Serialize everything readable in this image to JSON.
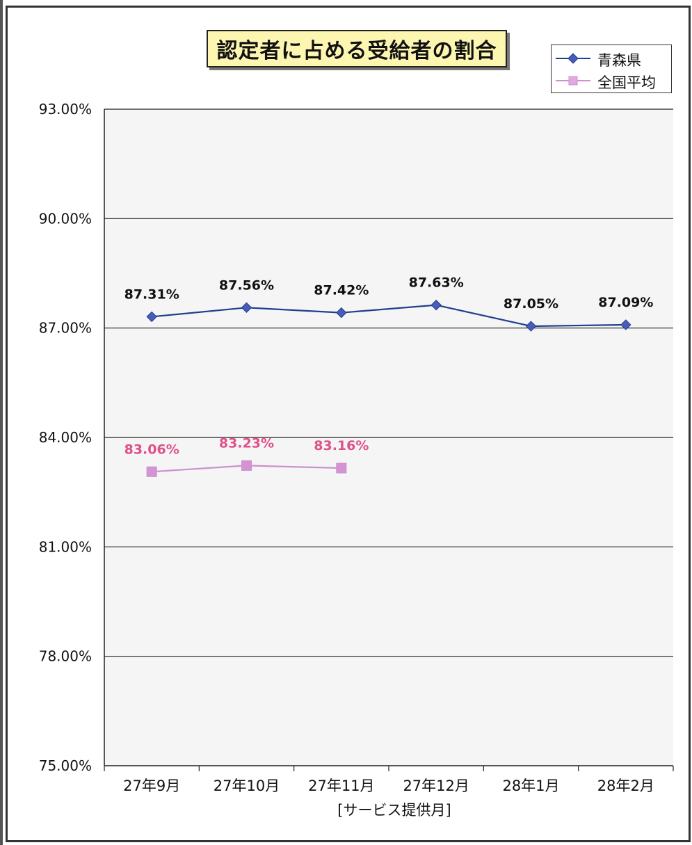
{
  "chart_data": {
    "type": "line",
    "title": "認定者に占める受給者の割合",
    "xlabel": "[サービス提供月]",
    "ylabel": "",
    "categories": [
      "27年9月",
      "27年10月",
      "27年11月",
      "27年12月",
      "28年1月",
      "28年2月"
    ],
    "ylim": [
      0.75,
      0.93
    ],
    "yticks": [
      "93.00%",
      "90.00%",
      "87.00%",
      "84.00%",
      "81.00%",
      "78.00%",
      "75.00%"
    ],
    "ytick_values": [
      0.93,
      0.9,
      0.87,
      0.84,
      0.81,
      0.78,
      0.75
    ],
    "grid": true,
    "legend_position": "top-right",
    "series": [
      {
        "name": "青森県",
        "color": "#1f3f8f",
        "marker": "diamond",
        "marker_color": "#4a5bb8",
        "values": [
          0.8731,
          0.8756,
          0.8742,
          0.8763,
          0.8705,
          0.8709
        ],
        "labels": [
          "87.31%",
          "87.56%",
          "87.42%",
          "87.63%",
          "87.05%",
          "87.09%"
        ]
      },
      {
        "name": "全国平均",
        "color": "#cc8fcc",
        "marker": "square",
        "marker_color": "#d494d4",
        "label_color": "#e0508a",
        "values": [
          0.8306,
          0.8323,
          0.8316,
          null,
          null,
          null
        ],
        "labels": [
          "83.06%",
          "83.23%",
          "83.16%",
          null,
          null,
          null
        ]
      }
    ]
  }
}
